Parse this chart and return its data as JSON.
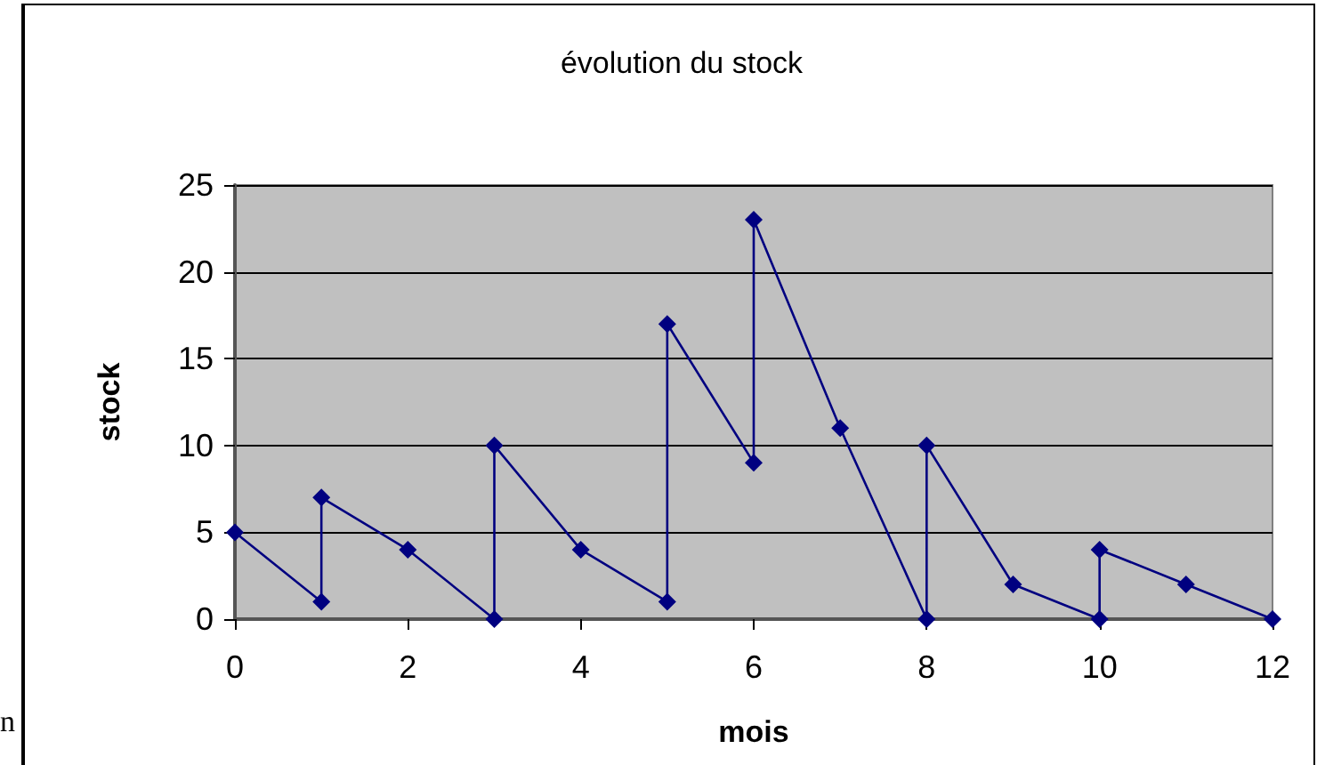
{
  "chart_data": {
    "type": "line",
    "title": "évolution du stock",
    "xlabel": "mois",
    "ylabel": "stock",
    "x": [
      0,
      1,
      1,
      2,
      3,
      3,
      4,
      5,
      5,
      6,
      6,
      7,
      8,
      8,
      9,
      10,
      10,
      11,
      12
    ],
    "series": [
      {
        "color": "#000080",
        "values": [
          5,
          1,
          7,
          4,
          0,
          10,
          4,
          1,
          17,
          9,
          23,
          11,
          0,
          10,
          2,
          0,
          4,
          2,
          0
        ]
      }
    ],
    "xlim": [
      0,
      12
    ],
    "xticks": [
      0,
      2,
      4,
      6,
      8,
      10,
      12
    ],
    "ylim": [
      0,
      25
    ],
    "yticks": [
      0,
      5,
      10,
      15,
      20,
      25
    ],
    "grid": "y",
    "marker": "diamond",
    "line_style": "solid",
    "annotations": [
      "n"
    ]
  }
}
